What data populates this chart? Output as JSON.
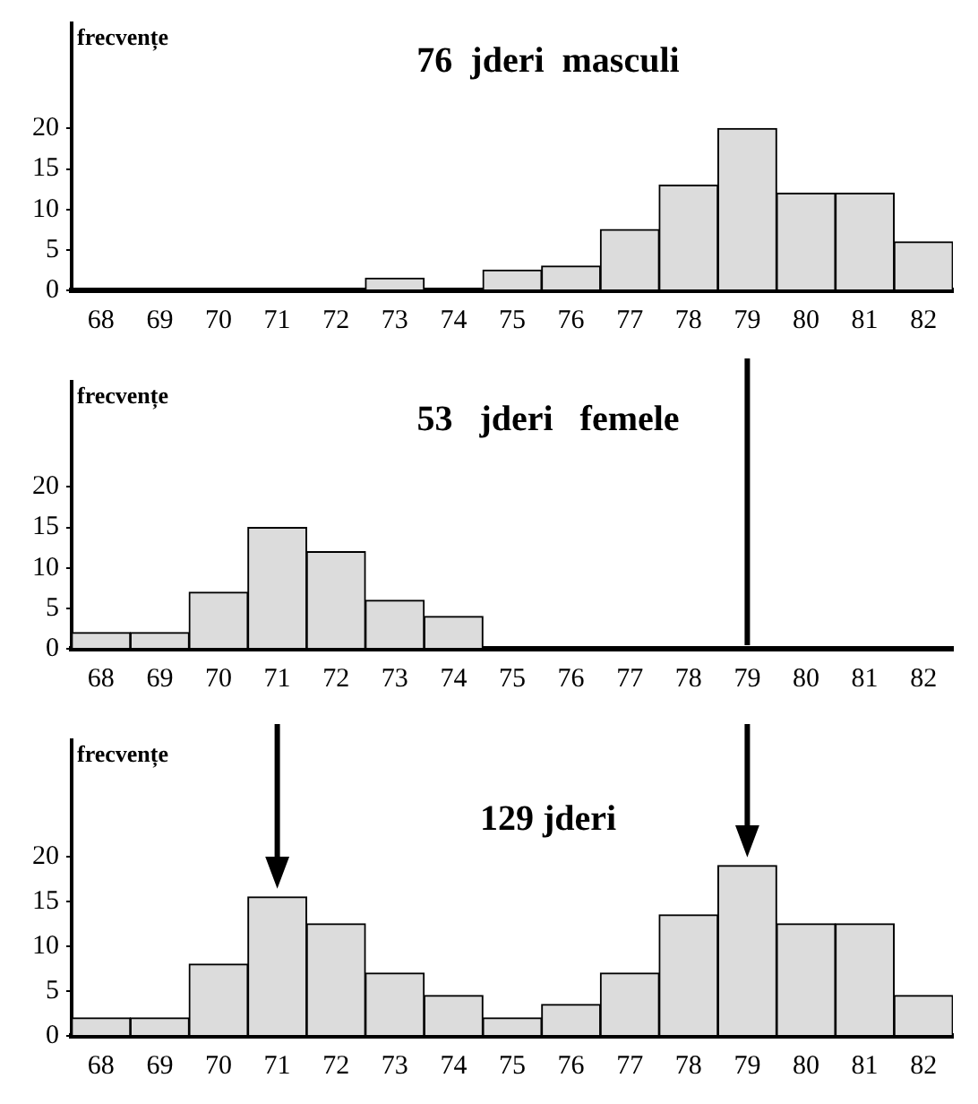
{
  "chart_data": [
    {
      "type": "bar",
      "title": "76  jderi  masculi",
      "ylabel": "frecvențe",
      "categories": [
        "68",
        "69",
        "70",
        "71",
        "72",
        "73",
        "74",
        "75",
        "76",
        "77",
        "78",
        "79",
        "80",
        "81",
        "82"
      ],
      "color": "#dcdcdc",
      "values": [
        0,
        0,
        0,
        0,
        0,
        1.5,
        0,
        2.5,
        3,
        7.5,
        13,
        20,
        12,
        12,
        6
      ],
      "ylim": [
        0,
        33
      ],
      "yticks": [
        0,
        5,
        10,
        15,
        20
      ],
      "grid": false,
      "legend": false
    },
    {
      "type": "bar",
      "title": "53   jderi   femele",
      "ylabel": "frecvențe",
      "categories": [
        "68",
        "69",
        "70",
        "71",
        "72",
        "73",
        "74",
        "75",
        "76",
        "77",
        "78",
        "79",
        "80",
        "81",
        "82"
      ],
      "color": "#dcdcdc",
      "values": [
        2,
        2,
        7,
        15,
        12,
        6,
        4,
        0,
        0,
        0,
        0,
        0,
        0,
        0,
        0
      ],
      "ref_lines": [
        {
          "axis": "x",
          "value": "79",
          "color": "#000000"
        }
      ],
      "ylim": [
        0,
        33
      ],
      "yticks": [
        0,
        5,
        10,
        15,
        20
      ],
      "grid": false,
      "legend": false
    },
    {
      "type": "bar",
      "title": "129 jderi",
      "ylabel": "frecvențe",
      "categories": [
        "68",
        "69",
        "70",
        "71",
        "72",
        "73",
        "74",
        "75",
        "76",
        "77",
        "78",
        "79",
        "80",
        "81",
        "82"
      ],
      "color": "#dcdcdc",
      "values": [
        2,
        2,
        8,
        15.5,
        12.5,
        7,
        4.5,
        2,
        3.5,
        7,
        13.5,
        19,
        12.5,
        12.5,
        4.5
      ],
      "ylim": [
        0,
        33
      ],
      "yticks": [
        0,
        5,
        10,
        15,
        20
      ],
      "grid": false,
      "legend": false
    }
  ]
}
